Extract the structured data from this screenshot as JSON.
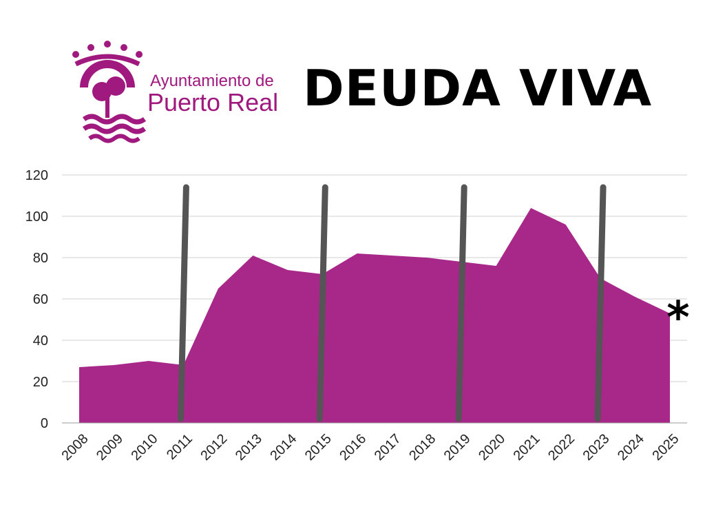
{
  "header": {
    "org_line1": "Ayuntamiento de",
    "org_line2": "Puerto Real",
    "title": "DEUDA VIVA"
  },
  "colors": {
    "area": "#a8288a",
    "brand": "#a0197f",
    "divider": "#555555",
    "grid": "#d0d0d0",
    "text": "#222222"
  },
  "chart_data": {
    "type": "area",
    "title": "DEUDA VIVA",
    "xlabel": "",
    "ylabel": "",
    "ylim": [
      0,
      120
    ],
    "yticks": [
      0,
      20,
      40,
      60,
      80,
      100,
      120
    ],
    "grid": true,
    "categories": [
      "2008",
      "2009",
      "2010",
      "2011",
      "2012",
      "2013",
      "2014",
      "2015",
      "2016",
      "2017",
      "2018",
      "2019",
      "2020",
      "2021",
      "2022",
      "2023",
      "2024",
      "2025"
    ],
    "series": [
      {
        "name": "Deuda viva",
        "values": [
          27,
          28,
          30,
          28,
          65,
          81,
          74,
          72,
          82,
          81,
          80,
          78,
          76,
          104,
          96,
          70,
          61,
          53
        ]
      }
    ],
    "dividers_at": [
      "2011",
      "2015",
      "2019",
      "2023"
    ],
    "annotation": {
      "at": "2025",
      "text": "*"
    }
  }
}
